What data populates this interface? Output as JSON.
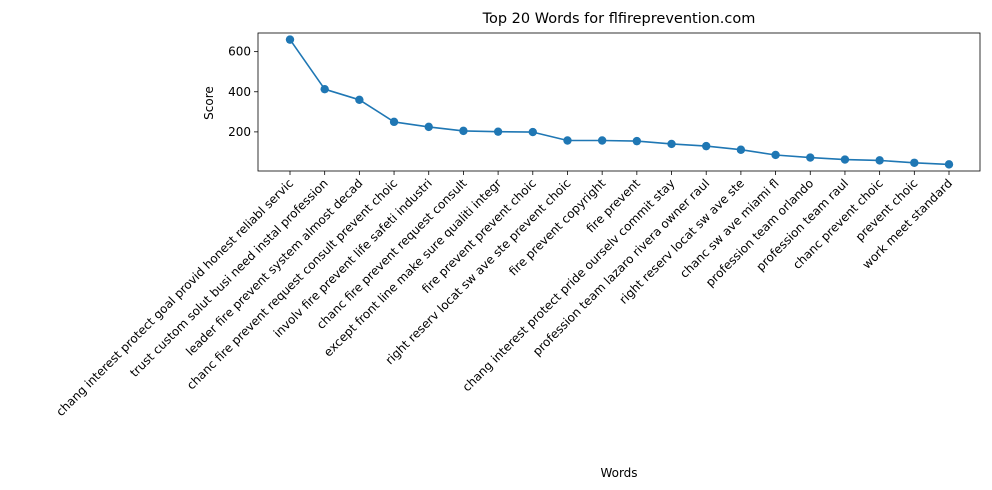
{
  "chart_data": {
    "type": "line",
    "title": "Top 20 Words for flfireprevention.com",
    "xlabel": "Words",
    "ylabel": "Score",
    "categories": [
      "chang interest protect goal provid honest reliabl servic",
      "trust custom solut busi need instal profession",
      "leader fire prevent system almost decad",
      "chanc fire prevent request consult prevent choic",
      "involv fire prevent life safeti industri",
      "chanc fire prevent request consult",
      "except front line make sure qualiti integr",
      "fire prevent prevent choic",
      "right reserv locat sw ave ste prevent choic",
      "fire prevent copyright",
      "fire prevent",
      "chang interest protect pride ourselv commit stay",
      "profession team lazaro rivera owner raul",
      "right reserv locat sw ave ste",
      "chanc sw ave miami fl",
      "profession team orlando",
      "profession team raul",
      "chanc prevent choic",
      "prevent choic",
      "work meet standard"
    ],
    "values": [
      660,
      413,
      360,
      250,
      225,
      205,
      201,
      199,
      157,
      157,
      154,
      140,
      129,
      111,
      85,
      72,
      62,
      58,
      46,
      38
    ],
    "yticks": [
      200,
      400,
      600
    ],
    "ylim": [
      5,
      693
    ],
    "color": "#1f77b4",
    "grid": false,
    "legend": "none"
  }
}
